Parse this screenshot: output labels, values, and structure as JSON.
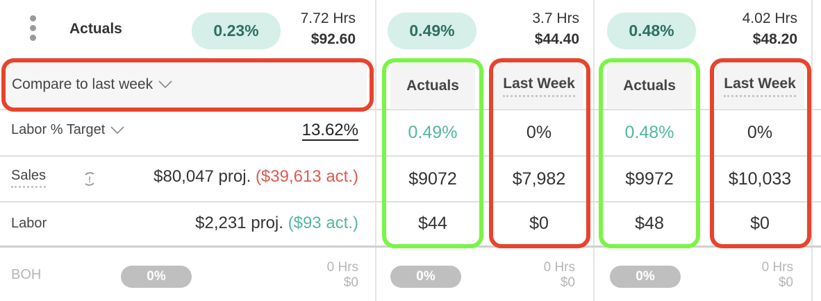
{
  "summary": {
    "label": "Actuals",
    "labor_pct": "0.23%",
    "hrs": "7.72 Hrs",
    "amount": "$92.60"
  },
  "days": [
    {
      "labor_pct": "0.49%",
      "hrs": "3.7 Hrs",
      "amount": "$44.40",
      "actuals_header": "Actuals",
      "lastweek_header": "Last Week",
      "target_actual": "0.49%",
      "target_lastweek": "0%",
      "sales_actual": "$9072",
      "sales_lastweek": "$7,982",
      "labor_actual": "$44",
      "labor_lastweek": "$0",
      "boh_pct": "0%",
      "boh_hrs": "0 Hrs",
      "boh_amount": "$0"
    },
    {
      "labor_pct": "0.48%",
      "hrs": "4.02 Hrs",
      "amount": "$48.20",
      "actuals_header": "Actuals",
      "lastweek_header": "Last Week",
      "target_actual": "0.48%",
      "target_lastweek": "0%",
      "sales_actual": "$9972",
      "sales_lastweek": "$10,033",
      "labor_actual": "$48",
      "labor_lastweek": "$0",
      "boh_pct": "0%",
      "boh_hrs": "0 Hrs",
      "boh_amount": "$0"
    }
  ],
  "compare": {
    "label": "Compare to last week"
  },
  "labor_target": {
    "label": "Labor % Target",
    "value": "13.62%"
  },
  "sales": {
    "label": "Sales",
    "projected": "$80,047 proj.",
    "actual": "($39,613 act.)"
  },
  "labor": {
    "label": "Labor",
    "projected": "$2,231 proj.",
    "actual": "($93 act.)"
  },
  "boh": {
    "label": "BOH",
    "pct": "0%",
    "hrs": "0 Hrs",
    "amount": "$0"
  },
  "icons": {
    "menu": "kebab-menu-icon",
    "dropdown": "chevron-down-icon",
    "refresh": "refresh-icon"
  },
  "colors": {
    "teal": "#52b8a0",
    "red": "#dd5a50",
    "pill_bg": "#d6efe9",
    "highlight_red": "#e8432c",
    "highlight_green": "#79f545"
  }
}
